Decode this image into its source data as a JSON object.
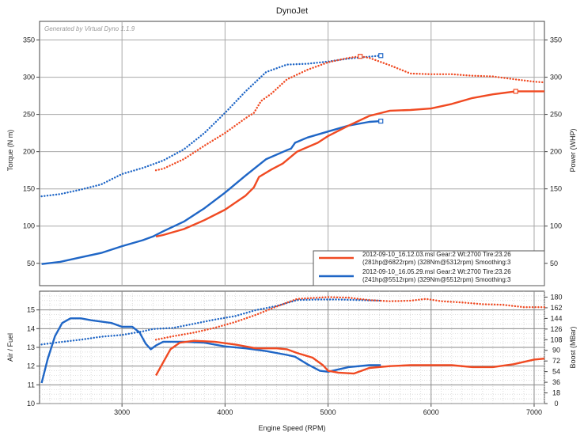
{
  "window": {
    "title": "DynoJet"
  },
  "chart_data": [
    {
      "type": "line",
      "panel": "upper",
      "title": "DynoJet",
      "watermark": "Generated by Virtual Dyno 1.1.9",
      "xlabel": "",
      "ylabel": "Torque (N m)",
      "y2label": "Power (WHP)",
      "xlim": [
        2200,
        7100
      ],
      "ylim": [
        20,
        375
      ],
      "y2lim": [
        20,
        375
      ],
      "y_ticks": [
        50,
        100,
        150,
        200,
        250,
        300,
        350
      ],
      "y2_ticks": [
        50,
        100,
        150,
        200,
        250,
        300,
        350
      ],
      "x_ticks": [
        3000,
        4000,
        5000,
        6000,
        7000
      ],
      "grid": true,
      "legend_placement": "bottom-right",
      "legend": [
        {
          "line1": "2012-09-10_16.12.03.msl Gear:2 Wt:2700 Tire:23.26",
          "line2": "(281hp@6822rpm) (328Nm@5312rpm) Smoothing:3",
          "color": "#f04a22"
        },
        {
          "line1": "2012-09-10_16.05.29.msl Gear:2 Wt:2700 Tire:23.26",
          "line2": "(241hp@5512rpm) (329Nm@5512rpm) Smoothing:3",
          "color": "#1f66c6"
        }
      ],
      "series": [
        {
          "color": "#1f66c6",
          "style": "dotted",
          "points": [
            [
              2220,
              140
            ],
            [
              2400,
              143
            ],
            [
              2600,
              149
            ],
            [
              2800,
              156
            ],
            [
              3000,
              170
            ],
            [
              3200,
              178
            ],
            [
              3400,
              188
            ],
            [
              3600,
              203
            ],
            [
              3800,
              225
            ],
            [
              4000,
              252
            ],
            [
              4200,
              281
            ],
            [
              4400,
              307
            ],
            [
              4600,
              317
            ],
            [
              4800,
              318
            ],
            [
              5000,
              321
            ],
            [
              5200,
              325
            ],
            [
              5350,
              327
            ],
            [
              5512,
              329
            ]
          ]
        },
        {
          "color": "#1f66c6",
          "style": "solid",
          "points": [
            [
              2220,
              49
            ],
            [
              2400,
              52
            ],
            [
              2600,
              58
            ],
            [
              2800,
              64
            ],
            [
              3000,
              73
            ],
            [
              3200,
              81
            ],
            [
              3300,
              86
            ],
            [
              3400,
              93
            ],
            [
              3600,
              106
            ],
            [
              3800,
              124
            ],
            [
              4000,
              145
            ],
            [
              4200,
              168
            ],
            [
              4400,
              190
            ],
            [
              4600,
              202
            ],
            [
              4640,
              204
            ],
            [
              4680,
              212
            ],
            [
              4800,
              219
            ],
            [
              5000,
              227
            ],
            [
              5200,
              235
            ],
            [
              5400,
              240
            ],
            [
              5512,
              241
            ]
          ]
        },
        {
          "color": "#f04a22",
          "style": "dotted",
          "points": [
            [
              3330,
              175
            ],
            [
              3400,
              177
            ],
            [
              3600,
              190
            ],
            [
              3800,
              208
            ],
            [
              4000,
              225
            ],
            [
              4200,
              245
            ],
            [
              4280,
              252
            ],
            [
              4350,
              268
            ],
            [
              4450,
              278
            ],
            [
              4600,
              297
            ],
            [
              4800,
              310
            ],
            [
              5000,
              320
            ],
            [
              5200,
              326
            ],
            [
              5312,
              328
            ],
            [
              5400,
              326
            ],
            [
              5600,
              316
            ],
            [
              5800,
              305
            ],
            [
              6000,
              304
            ],
            [
              6200,
              304
            ],
            [
              6400,
              302
            ],
            [
              6600,
              301
            ],
            [
              6822,
              297
            ],
            [
              7000,
              294
            ],
            [
              7100,
              293
            ]
          ]
        },
        {
          "color": "#f04a22",
          "style": "solid",
          "points": [
            [
              3330,
              86
            ],
            [
              3400,
              88
            ],
            [
              3600,
              96
            ],
            [
              3800,
              108
            ],
            [
              4000,
              122
            ],
            [
              4200,
              141
            ],
            [
              4280,
              152
            ],
            [
              4330,
              166
            ],
            [
              4450,
              176
            ],
            [
              4560,
              184
            ],
            [
              4700,
              200
            ],
            [
              4900,
              212
            ],
            [
              5000,
              221
            ],
            [
              5200,
              235
            ],
            [
              5400,
              248
            ],
            [
              5600,
              255
            ],
            [
              5800,
              256
            ],
            [
              6000,
              258
            ],
            [
              6200,
              264
            ],
            [
              6400,
              272
            ],
            [
              6600,
              277
            ],
            [
              6822,
              281
            ],
            [
              7000,
              281
            ],
            [
              7100,
              281
            ]
          ]
        }
      ],
      "end_markers": [
        {
          "x": 5312,
          "y": 328,
          "color": "#f04a22"
        },
        {
          "x": 6822,
          "y": 281,
          "color": "#f04a22"
        },
        {
          "x": 5512,
          "y": 329,
          "color": "#1f66c6"
        },
        {
          "x": 5512,
          "y": 241,
          "color": "#1f66c6"
        }
      ]
    },
    {
      "type": "line",
      "panel": "lower",
      "xlabel": "Engine Speed (RPM)",
      "ylabel": "Air / Fuel",
      "y2label": "Boost (MBar)",
      "xlim": [
        2200,
        7100
      ],
      "ylim": [
        10,
        16
      ],
      "y_ticks": [
        10,
        11,
        12,
        13,
        14,
        15
      ],
      "y2lim": [
        0,
        190
      ],
      "y2_ticks": [
        0,
        18,
        36,
        54,
        72,
        90,
        108,
        126,
        144,
        162,
        180
      ],
      "x_ticks": [
        3000,
        4000,
        5000,
        6000,
        7000
      ],
      "grid": true,
      "series": [
        {
          "color": "#1f66c6",
          "style": "solid",
          "axis": "left",
          "points": [
            [
              2220,
              11.1
            ],
            [
              2280,
              12.4
            ],
            [
              2350,
              13.6
            ],
            [
              2420,
              14.3
            ],
            [
              2500,
              14.55
            ],
            [
              2600,
              14.55
            ],
            [
              2700,
              14.45
            ],
            [
              2900,
              14.3
            ],
            [
              3000,
              14.1
            ],
            [
              3100,
              14.1
            ],
            [
              3170,
              13.8
            ],
            [
              3230,
              13.2
            ],
            [
              3280,
              12.9
            ],
            [
              3330,
              13.1
            ],
            [
              3400,
              13.3
            ],
            [
              3600,
              13.3
            ],
            [
              3800,
              13.25
            ],
            [
              4000,
              13.05
            ],
            [
              4200,
              12.95
            ],
            [
              4400,
              12.8
            ],
            [
              4600,
              12.6
            ],
            [
              4680,
              12.5
            ],
            [
              4800,
              12.1
            ],
            [
              4920,
              11.75
            ],
            [
              5000,
              11.7
            ],
            [
              5200,
              11.95
            ],
            [
              5400,
              12.05
            ],
            [
              5512,
              12.05
            ]
          ]
        },
        {
          "color": "#f04a22",
          "style": "solid",
          "axis": "left",
          "points": [
            [
              3330,
              11.5
            ],
            [
              3400,
              12.2
            ],
            [
              3470,
              12.9
            ],
            [
              3560,
              13.25
            ],
            [
              3700,
              13.35
            ],
            [
              3900,
              13.3
            ],
            [
              4100,
              13.15
            ],
            [
              4300,
              12.95
            ],
            [
              4500,
              12.95
            ],
            [
              4600,
              12.9
            ],
            [
              4700,
              12.7
            ],
            [
              4850,
              12.45
            ],
            [
              4950,
              12.05
            ],
            [
              5000,
              11.75
            ],
            [
              5100,
              11.65
            ],
            [
              5250,
              11.6
            ],
            [
              5400,
              11.9
            ],
            [
              5600,
              12.0
            ],
            [
              5800,
              12.05
            ],
            [
              6000,
              12.05
            ],
            [
              6200,
              12.05
            ],
            [
              6400,
              11.95
            ],
            [
              6600,
              11.95
            ],
            [
              6800,
              12.1
            ],
            [
              7000,
              12.35
            ],
            [
              7100,
              12.4
            ]
          ]
        },
        {
          "color": "#1f66c6",
          "style": "dotted",
          "axis": "right",
          "points": [
            [
              2220,
              100
            ],
            [
              2400,
              104
            ],
            [
              2600,
              108
            ],
            [
              2800,
              113
            ],
            [
              3000,
              116
            ],
            [
              3200,
              122
            ],
            [
              3300,
              126
            ],
            [
              3500,
              128
            ],
            [
              3700,
              135
            ],
            [
              3900,
              142
            ],
            [
              4100,
              148
            ],
            [
              4300,
              158
            ],
            [
              4500,
              165
            ],
            [
              4700,
              175
            ],
            [
              4900,
              176
            ],
            [
              5100,
              176
            ],
            [
              5300,
              175
            ],
            [
              5512,
              174
            ]
          ]
        },
        {
          "color": "#f04a22",
          "style": "dotted",
          "axis": "right",
          "points": [
            [
              3330,
              108
            ],
            [
              3500,
              114
            ],
            [
              3700,
              120
            ],
            [
              3900,
              128
            ],
            [
              4100,
              138
            ],
            [
              4300,
              150
            ],
            [
              4500,
              164
            ],
            [
              4700,
              177
            ],
            [
              4900,
              179
            ],
            [
              5000,
              180
            ],
            [
              5200,
              179
            ],
            [
              5400,
              175
            ],
            [
              5600,
              173
            ],
            [
              5800,
              174
            ],
            [
              5950,
              177
            ],
            [
              6100,
              173
            ],
            [
              6300,
              171
            ],
            [
              6500,
              168
            ],
            [
              6700,
              167
            ],
            [
              6900,
              163
            ],
            [
              7100,
              163
            ]
          ]
        }
      ]
    }
  ]
}
